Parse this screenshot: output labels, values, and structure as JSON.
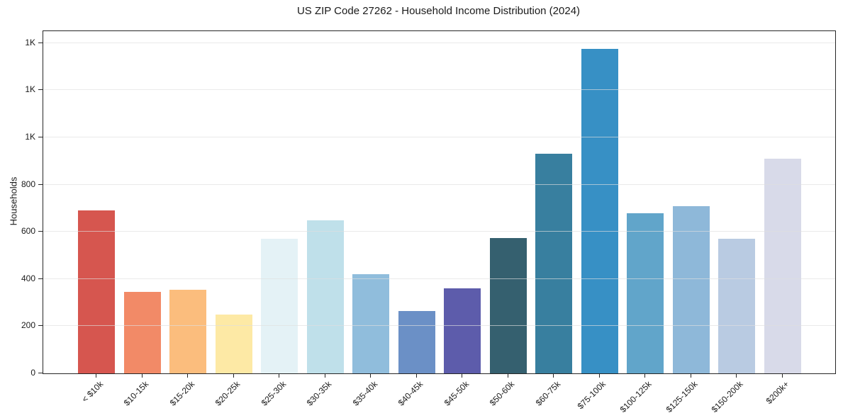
{
  "chart_data": {
    "type": "bar",
    "title": "US ZIP Code 27262 - Household Income Distribution (2024)",
    "xlabel": "",
    "ylabel": "Households",
    "categories": [
      "< $10k",
      "$10-15k",
      "$15-20k",
      "$20-25k",
      "$25-30k",
      "$30-35k",
      "$35-40k",
      "$40-45k",
      "$45-50k",
      "$50-60k",
      "$60-75k",
      "$75-100k",
      "$100-125k",
      "$125-150k",
      "$150-200k",
      "$200k+"
    ],
    "values": [
      690,
      345,
      355,
      250,
      570,
      650,
      420,
      265,
      360,
      575,
      930,
      1375,
      680,
      710,
      570,
      910
    ],
    "bar_colors": [
      "#d6564f",
      "#f28a67",
      "#fbbd7d",
      "#fde9a5",
      "#e4f2f6",
      "#bfe0ea",
      "#90bddc",
      "#6b90c6",
      "#5d5cab",
      "#35606f",
      "#387f9f",
      "#3790c5",
      "#61a5ca",
      "#8eb8d9",
      "#b9cbe2",
      "#d8dae9"
    ],
    "ylim": [
      0,
      1450
    ],
    "yticks": [
      0,
      200,
      400,
      600,
      800,
      1000,
      1200,
      1400
    ],
    "ytick_labels": [
      "0",
      "200",
      "400",
      "600",
      "800",
      "1K",
      "1K",
      "1K"
    ],
    "grid": "horizontal",
    "legend": null
  },
  "style": {
    "background": "#ffffff",
    "text_color": "#1a1a1a",
    "spine_color": "#262626",
    "grid_color": "#dedede"
  }
}
